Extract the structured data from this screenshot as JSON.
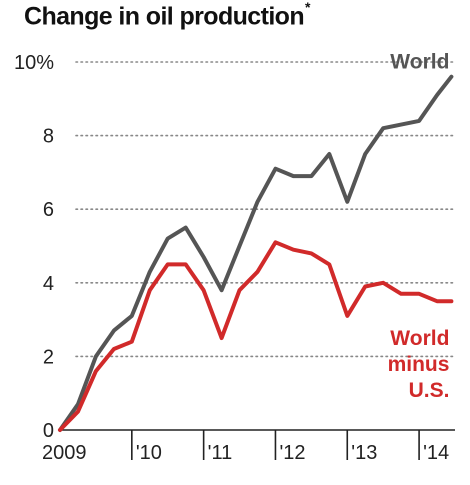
{
  "title": "Change in oil production",
  "title_footnote_mark": "*",
  "colors": {
    "world": "#555555",
    "world_minus_us": "#d12a2a",
    "grid": "#888888",
    "axis": "#222222"
  },
  "chart_data": {
    "type": "line",
    "title": "Change in oil production*",
    "ylim": [
      0,
      10
    ],
    "yticks": [
      {
        "value": 0,
        "label": "0"
      },
      {
        "value": 2,
        "label": "2"
      },
      {
        "value": 4,
        "label": "4"
      },
      {
        "value": 6,
        "label": "6"
      },
      {
        "value": 8,
        "label": "8"
      },
      {
        "value": 10,
        "label": "10%"
      }
    ],
    "xlim": [
      2009.0,
      2014.5
    ],
    "xticks": [
      {
        "value": 2009,
        "label": "2009"
      },
      {
        "value": 2010,
        "label": "'10"
      },
      {
        "value": 2011,
        "label": "'11"
      },
      {
        "value": 2012,
        "label": "'12"
      },
      {
        "value": 2013,
        "label": "'13"
      },
      {
        "value": 2014,
        "label": "'14"
      }
    ],
    "grid": "horizontal dotted",
    "legend": "direct labels at right",
    "x": [
      2009.0,
      2009.25,
      2009.5,
      2009.75,
      2010.0,
      2010.25,
      2010.5,
      2010.75,
      2011.0,
      2011.25,
      2011.5,
      2011.75,
      2012.0,
      2012.25,
      2012.5,
      2012.75,
      2013.0,
      2013.25,
      2013.5,
      2013.75,
      2014.0,
      2014.25,
      2014.45
    ],
    "series": [
      {
        "name": "World",
        "label_lines": [
          "World"
        ],
        "color": "#555555",
        "values": [
          0.0,
          0.7,
          2.0,
          2.7,
          3.1,
          4.3,
          5.2,
          5.5,
          4.7,
          3.8,
          5.0,
          6.2,
          7.1,
          6.9,
          6.9,
          7.5,
          6.2,
          7.5,
          8.2,
          8.3,
          8.4,
          9.1,
          9.6
        ]
      },
      {
        "name": "World minus U.S.",
        "label_lines": [
          "World",
          "minus",
          "U.S."
        ],
        "color": "#d12a2a",
        "values": [
          0.0,
          0.5,
          1.6,
          2.2,
          2.4,
          3.8,
          4.5,
          4.5,
          3.8,
          2.5,
          3.8,
          4.3,
          5.1,
          4.9,
          4.8,
          4.5,
          3.1,
          3.9,
          4.0,
          3.7,
          3.7,
          3.5,
          3.5
        ]
      }
    ]
  }
}
